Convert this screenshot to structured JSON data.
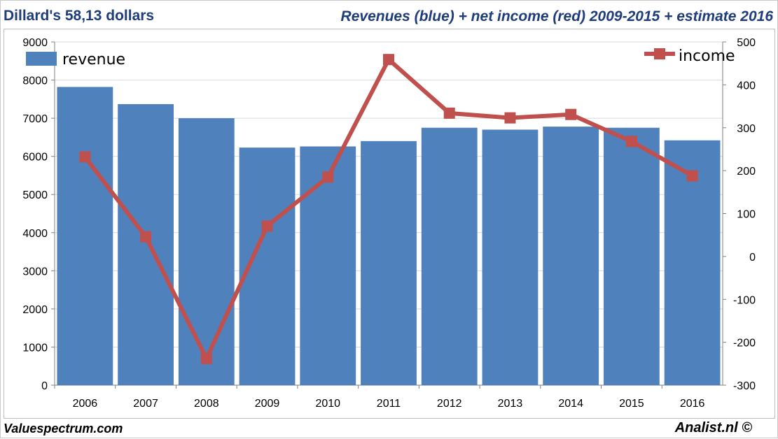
{
  "header": {
    "left_title": "Dillard's 58,13 dollars",
    "right_title": "Revenues (blue) + net income (red) 2009-2015 + estimate 2016"
  },
  "footer": {
    "left": "Valuespectrum.com",
    "right": "Analist.nl ©"
  },
  "colors": {
    "title": "#1f3d7a",
    "bar": "#4f81bd",
    "line": "#c0504d",
    "grid": "#d9d9d9"
  },
  "chart_data": {
    "type": "bar",
    "title": "Revenues (blue) + net income (red) 2009-2015 + estimate 2016",
    "categories": [
      "2006",
      "2007",
      "2008",
      "2009",
      "2010",
      "2011",
      "2012",
      "2013",
      "2014",
      "2015",
      "2016"
    ],
    "series": [
      {
        "name": "revenue",
        "type": "bar",
        "axis": "left",
        "values": [
          7820,
          7370,
          7000,
          6230,
          6260,
          6400,
          6750,
          6700,
          6780,
          6750,
          6420
        ]
      },
      {
        "name": "income",
        "type": "line",
        "axis": "right",
        "values": [
          232,
          46,
          -238,
          71,
          185,
          459,
          334,
          323,
          331,
          268,
          188
        ]
      }
    ],
    "left_axis": {
      "min": 0,
      "max": 9000,
      "ticks": [
        "0",
        "1000",
        "2000",
        "3000",
        "4000",
        "5000",
        "6000",
        "7000",
        "8000",
        "9000"
      ]
    },
    "right_axis": {
      "min": -300,
      "max": 500,
      "ticks": [
        "-300",
        "-200",
        "-100",
        "0",
        "100",
        "200",
        "300",
        "400",
        "500"
      ]
    },
    "legend": [
      {
        "label": "revenue",
        "position": "top-left"
      },
      {
        "label": "income",
        "position": "top-right"
      }
    ],
    "grid": true
  }
}
